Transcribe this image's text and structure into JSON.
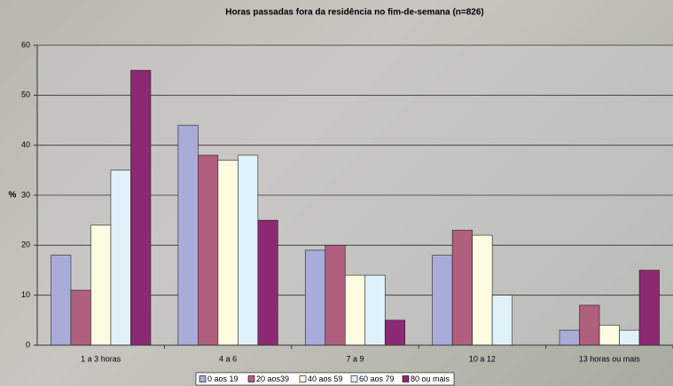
{
  "chart_data": {
    "type": "bar",
    "title": "Horas passadas fora da residência no fim-de-semana (n=826)",
    "y_label": "%",
    "categories": [
      "1 a 3 horas",
      "4 a 6",
      "7 a 9",
      "10 a 12",
      "13 horas ou mais"
    ],
    "series": [
      {
        "name": "0 aos 19",
        "color": "#a9acd9",
        "values": [
          18,
          44,
          19,
          18,
          3
        ]
      },
      {
        "name": "20 aos39",
        "color": "#b05f7d",
        "values": [
          11,
          38,
          20,
          23,
          8
        ]
      },
      {
        "name": "40 aos 59",
        "color": "#fdfbe0",
        "values": [
          24,
          37,
          14,
          22,
          4
        ]
      },
      {
        "name": "60 aos 79",
        "color": "#dff2fa",
        "values": [
          35,
          38,
          14,
          10,
          3
        ]
      },
      {
        "name": "80 ou mais",
        "color": "#8b2a73",
        "values": [
          55,
          25,
          5,
          0,
          15
        ]
      }
    ],
    "ylim": [
      0,
      60
    ],
    "yticks": [
      0,
      10,
      20,
      30,
      40,
      50,
      60
    ],
    "grid": true,
    "legend": "bottom"
  }
}
